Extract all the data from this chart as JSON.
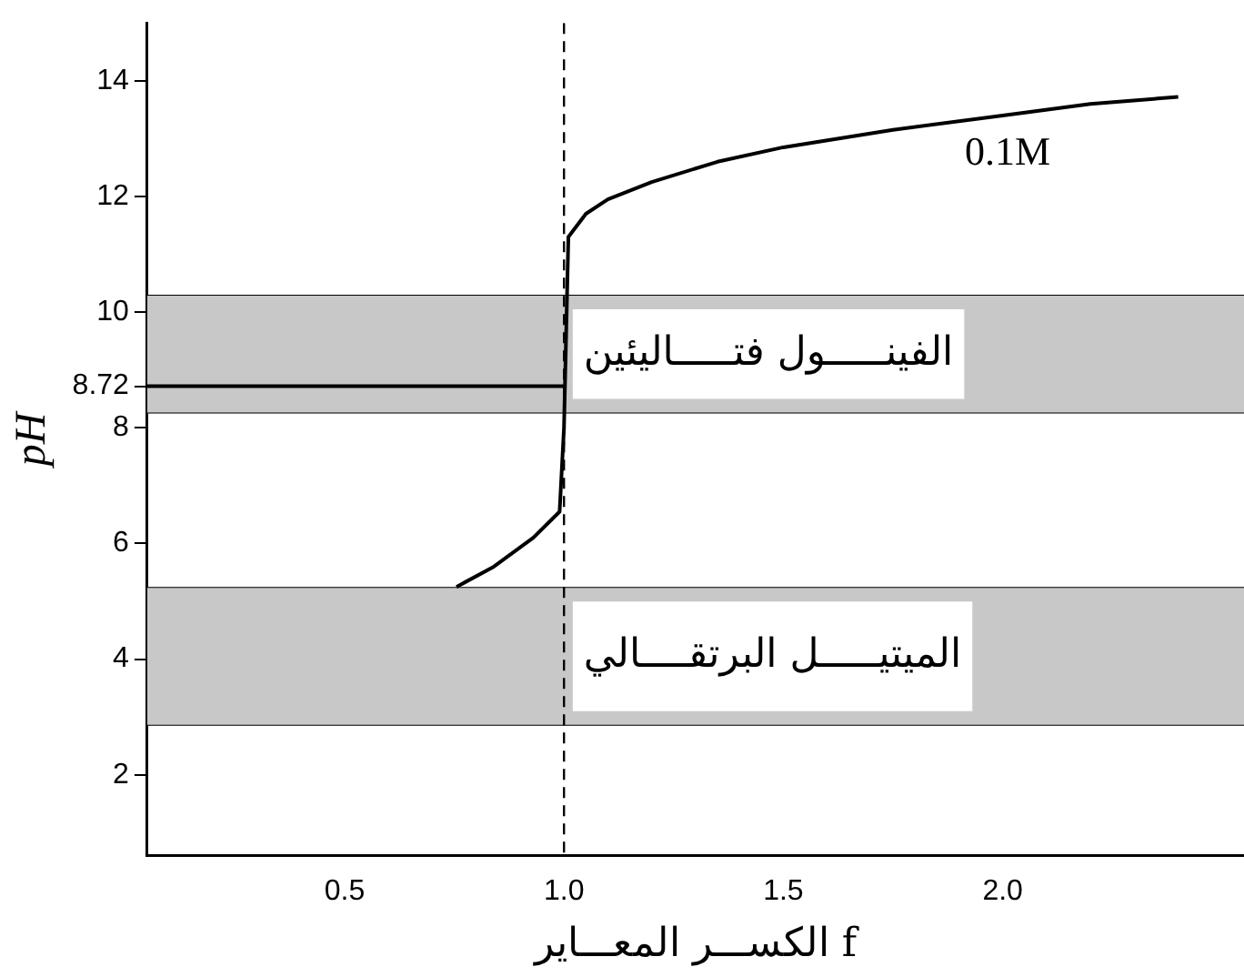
{
  "chart_data": {
    "type": "line",
    "xlabel": "الكســـر المعـــاير f",
    "ylabel": "pH",
    "xlim": [
      0.05,
      2.55
    ],
    "xticks": [
      0.5,
      {
        "value": 1,
        "label": "1.0"
      },
      1.5,
      {
        "value": 2,
        "label": "2.0"
      }
    ],
    "ylim": [
      0.6,
      15
    ],
    "yticks": [
      2,
      4,
      6,
      8,
      8.72,
      10,
      12,
      14
    ],
    "grid": false,
    "legend": false,
    "marker": "none",
    "line_style": "solid",
    "series": [
      {
        "color": "#000000",
        "x": [
          0.755,
          0.84,
          0.93,
          0.99,
          1.0,
          1.01,
          1.05,
          1.1,
          1.2,
          1.35,
          1.5,
          1.75,
          2.0,
          2.2,
          2.4
        ],
        "values": [
          5.25,
          5.6,
          6.1,
          6.55,
          8.0,
          11.3,
          11.7,
          11.95,
          12.25,
          12.6,
          12.85,
          13.15,
          13.4,
          13.6,
          13.72
        ]
      },
      {
        "color": "#000000",
        "x": [
          0.05,
          1.0
        ],
        "values": [
          8.72,
          8.72
        ]
      }
    ],
    "ref_lines": [
      {
        "axis": "x",
        "value": 1,
        "line_style": "dashed",
        "color": "#000000"
      }
    ],
    "bands": [
      {
        "axis": "y",
        "from": 8.25,
        "to": 10.3,
        "label": "الفينـــــول فتـــــاليئين",
        "color": "#c8c8c8"
      },
      {
        "axis": "y",
        "from": 2.85,
        "to": 5.25,
        "label": "الميتيـــــل البرتقــــالي",
        "color": "#c8c8c8"
      }
    ],
    "annotations": [
      "0.1M"
    ]
  }
}
